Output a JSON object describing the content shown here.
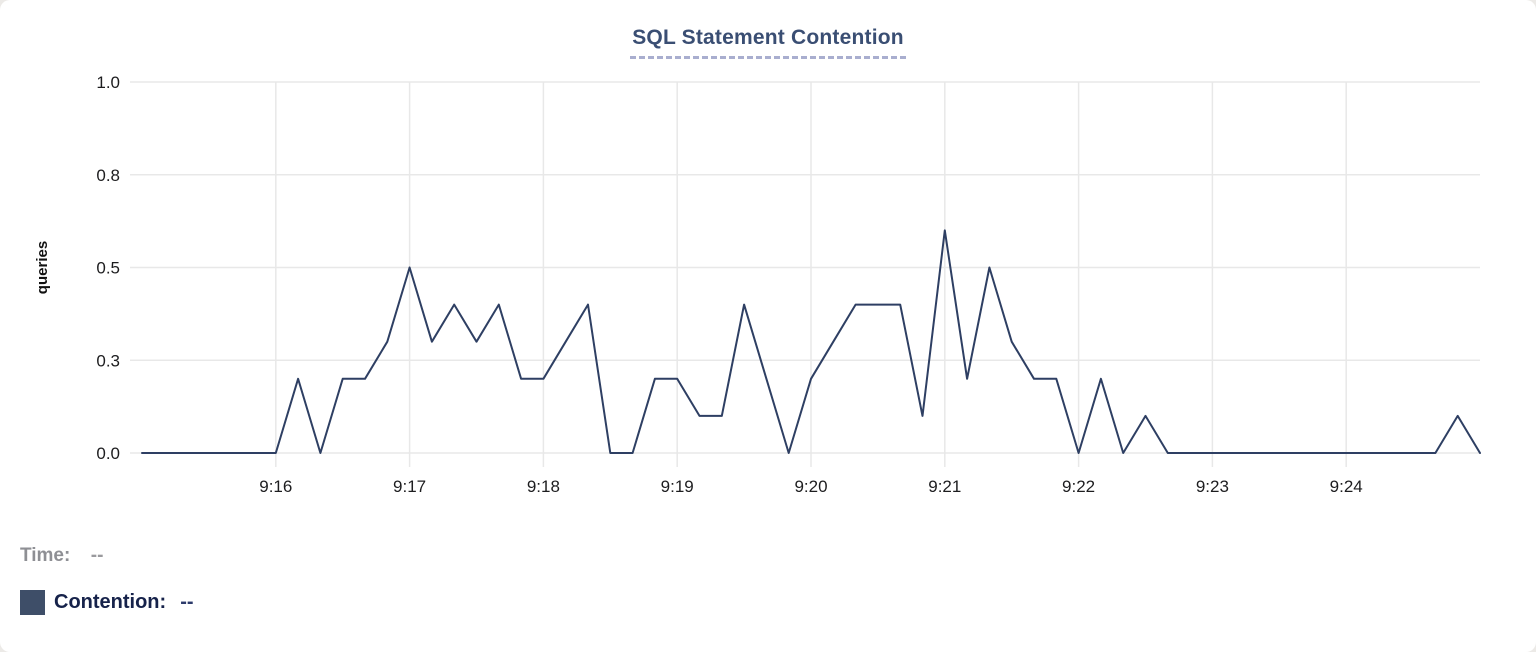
{
  "header": {
    "title": "SQL Statement Contention"
  },
  "colors": {
    "card_background": "#ffffff",
    "page_background": "#eceae7",
    "title": "#3a4e73",
    "title_underline": "#a9aecf",
    "line": "#2e3f63",
    "legend_swatch": "#3e4e68",
    "time_label": "#8e8f94",
    "contention_label": "#16224a",
    "grid": "#e8e8e8",
    "tick_text": "#1d1d1f"
  },
  "chart_data": {
    "type": "line",
    "title": "SQL Statement Contention",
    "xlabel": "",
    "ylabel": "queries",
    "ylim": [
      0,
      1
    ],
    "grid": true,
    "grid_color": "#e8e8e8",
    "tick_color": "#1d1d1f",
    "legend_position": "none",
    "y_ticks": [
      {
        "value": 1.0,
        "label": "1.0"
      },
      {
        "value": 0.75,
        "label": "0.8"
      },
      {
        "value": 0.5,
        "label": "0.5"
      },
      {
        "value": 0.25,
        "label": "0.3"
      },
      {
        "value": 0.0,
        "label": "0.0"
      }
    ],
    "x_ticks": [
      {
        "time": "9:16:00",
        "label": "9:16"
      },
      {
        "time": "9:17:00",
        "label": "9:17"
      },
      {
        "time": "9:18:00",
        "label": "9:18"
      },
      {
        "time": "9:19:00",
        "label": "9:19"
      },
      {
        "time": "9:20:00",
        "label": "9:20"
      },
      {
        "time": "9:21:00",
        "label": "9:21"
      },
      {
        "time": "9:22:00",
        "label": "9:22"
      },
      {
        "time": "9:23:00",
        "label": "9:23"
      },
      {
        "time": "9:24:00",
        "label": "9:24"
      }
    ],
    "x_start": "9:15:00",
    "x_end": "9:25:00",
    "x_interval_seconds": 10,
    "series": [
      {
        "name": "Contention",
        "color": "#2e3f63",
        "values": [
          0,
          0,
          0,
          0,
          0,
          0,
          0,
          0.2,
          0,
          0.2,
          0.2,
          0.3,
          0.5,
          0.3,
          0.4,
          0.3,
          0.4,
          0.2,
          0.2,
          0.3,
          0.4,
          0,
          0,
          0.2,
          0.2,
          0.1,
          0.1,
          0.4,
          0.2,
          0,
          0.2,
          0.3,
          0.4,
          0.4,
          0.4,
          0.1,
          0.6,
          0.2,
          0.5,
          0.3,
          0.2,
          0.2,
          0,
          0.2,
          0,
          0.1,
          0,
          0,
          0,
          0,
          0,
          0,
          0,
          0,
          0,
          0,
          0,
          0,
          0,
          0.1,
          0
        ]
      }
    ]
  },
  "legend": {
    "time_label": "Time:",
    "time_value": "--",
    "contention_label": "Contention:",
    "contention_value": "--"
  }
}
